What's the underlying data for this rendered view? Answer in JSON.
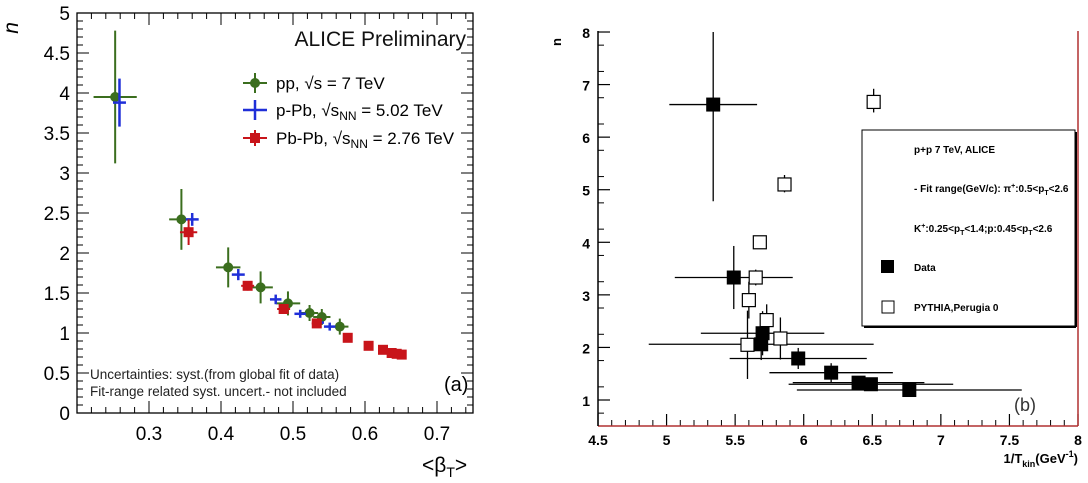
{
  "chart_data": [
    {
      "type": "scatter",
      "panel_label": "(a)",
      "title": "ALICE Preliminary",
      "xlabel": "<β",
      "xlabel_sub": "T",
      "xlabel_end": ">",
      "ylabel": "n",
      "xlim": [
        0.2,
        0.75
      ],
      "ylim": [
        0,
        5
      ],
      "x_ticks": [
        "0.3",
        "0.4",
        "0.5",
        "0.6",
        "0.7"
      ],
      "x_tick_values": [
        0.3,
        0.4,
        0.5,
        0.6,
        0.7
      ],
      "y_ticks": [
        "0",
        "0.5",
        "1",
        "1.5",
        "2",
        "2.5",
        "3",
        "3.5",
        "4",
        "4.5",
        "5"
      ],
      "y_tick_values": [
        0,
        0.5,
        1,
        1.5,
        2,
        2.5,
        3,
        3.5,
        4,
        4.5,
        5
      ],
      "legend_position": "top-right",
      "notes": [
        "Uncertainties: syst.(from global fit of data)",
        "Fit-range related syst. uncert.- not included"
      ],
      "series": [
        {
          "name": "pp, √s = 7 TeV",
          "color": "#3b6e1e",
          "marker": "circle",
          "points": [
            {
              "x": 0.253,
              "y": 3.95,
              "xerr": 0.03,
              "yerr": 0.83
            },
            {
              "x": 0.345,
              "y": 2.42,
              "xerr": 0.017,
              "yerr": 0.38
            },
            {
              "x": 0.41,
              "y": 1.82,
              "xerr": 0.017,
              "yerr": 0.25
            },
            {
              "x": 0.455,
              "y": 1.57,
              "xerr": 0.017,
              "yerr": 0.2
            },
            {
              "x": 0.493,
              "y": 1.37,
              "xerr": 0.017,
              "yerr": 0.15
            },
            {
              "x": 0.523,
              "y": 1.25,
              "xerr": 0.012,
              "yerr": 0.1
            },
            {
              "x": 0.54,
              "y": 1.2,
              "xerr": 0.012,
              "yerr": 0.1
            },
            {
              "x": 0.565,
              "y": 1.08,
              "xerr": 0.012,
              "yerr": 0.1
            }
          ]
        },
        {
          "name": "p-Pb, √s",
          "name_sub": "NN",
          "name_end": " = 5.02 TeV",
          "color": "#1f2fd8",
          "marker": "cross",
          "points": [
            {
              "x": 0.259,
              "y": 3.88,
              "xerr": 0.009,
              "yerr": 0.3
            },
            {
              "x": 0.36,
              "y": 2.42,
              "xerr": 0.009,
              "yerr": 0.08
            },
            {
              "x": 0.424,
              "y": 1.73,
              "xerr": 0.009,
              "yerr": 0.07
            },
            {
              "x": 0.476,
              "y": 1.42,
              "xerr": 0.008,
              "yerr": 0.06
            },
            {
              "x": 0.51,
              "y": 1.24,
              "xerr": 0.008,
              "yerr": 0.05
            },
            {
              "x": 0.535,
              "y": 1.13,
              "xerr": 0.008,
              "yerr": 0.05
            },
            {
              "x": 0.551,
              "y": 1.08,
              "xerr": 0.008,
              "yerr": 0.05
            }
          ]
        },
        {
          "name": "Pb-Pb, √s",
          "name_sub": "NN",
          "name_end": " = 2.76 TeV",
          "color": "#c8141a",
          "marker": "square",
          "points": [
            {
              "x": 0.355,
              "y": 2.26,
              "xerr": 0.012,
              "yerr": 0.16
            },
            {
              "x": 0.437,
              "y": 1.59,
              "xerr": 0.009,
              "yerr": 0.06
            },
            {
              "x": 0.487,
              "y": 1.3,
              "xerr": 0.009,
              "yerr": 0.05
            },
            {
              "x": 0.533,
              "y": 1.12,
              "xerr": 0.007,
              "yerr": 0.04
            },
            {
              "x": 0.576,
              "y": 0.94,
              "xerr": 0.005,
              "yerr": 0.03
            },
            {
              "x": 0.605,
              "y": 0.84,
              "xerr": 0.005,
              "yerr": 0.03
            },
            {
              "x": 0.625,
              "y": 0.79,
              "xerr": 0.005,
              "yerr": 0.03
            },
            {
              "x": 0.637,
              "y": 0.75,
              "xerr": 0.004,
              "yerr": 0.02
            },
            {
              "x": 0.644,
              "y": 0.74,
              "xerr": 0.004,
              "yerr": 0.02
            },
            {
              "x": 0.651,
              "y": 0.73,
              "xerr": 0.004,
              "yerr": 0.02
            }
          ]
        }
      ]
    },
    {
      "type": "scatter",
      "panel_label": "(b)",
      "xlabel": "1/T",
      "xlabel_sub": "kin",
      "xlabel_end": "(GeV",
      "xlabel_sup": "-1",
      "xlabel_close": ")",
      "ylabel": "n",
      "xlim": [
        4.5,
        8
      ],
      "ylim": [
        0.5,
        8
      ],
      "x_ticks": [
        "4.5",
        "5",
        "5.5",
        "6",
        "6.5",
        "7",
        "7.5",
        "8"
      ],
      "x_tick_values": [
        4.5,
        5,
        5.5,
        6,
        6.5,
        7,
        7.5,
        8
      ],
      "y_ticks": [
        "1",
        "2",
        "3",
        "4",
        "5",
        "6",
        "7",
        "8"
      ],
      "y_tick_values": [
        1,
        2,
        3,
        4,
        5,
        6,
        7,
        8
      ],
      "legend_position": "right",
      "legend_title": "p+p 7 TeV, ALICE",
      "legend_text": [
        "- Fit range(GeV/c): π",
        "+",
        ":0.5<p",
        "T",
        "<2.6",
        "K",
        "+",
        ":0.25<p",
        "T",
        "<1.4;p:0.45<p",
        "T",
        "<2.6"
      ],
      "series": [
        {
          "name": "Data",
          "marker": "filled-square",
          "color": "#000000",
          "points": [
            {
              "x": 5.34,
              "y": 6.62,
              "xerr": 0.32,
              "yerr_up": 1.38,
              "yerr_down": 1.84
            },
            {
              "x": 5.49,
              "y": 3.33,
              "xerr": 0.43,
              "yerr_up": 0.6,
              "yerr_down": 0.6
            },
            {
              "x": 5.7,
              "y": 2.27,
              "xerr": 0.45,
              "yerr_up": 0.42,
              "yerr_down": 0.42
            },
            {
              "x": 5.69,
              "y": 2.06,
              "xerr": 0.82,
              "yerr_up": 0.3,
              "yerr_down": 0.3
            },
            {
              "x": 5.96,
              "y": 1.79,
              "xerr": 0.5,
              "yerr_up": 0.2,
              "yerr_down": 0.2
            },
            {
              "x": 6.2,
              "y": 1.52,
              "xerr": 0.45,
              "yerr_up": 0.18,
              "yerr_down": 0.18
            },
            {
              "x": 6.4,
              "y": 1.33,
              "xerr": 0.48,
              "yerr_up": 0.12,
              "yerr_down": 0.12
            },
            {
              "x": 6.49,
              "y": 1.3,
              "xerr": 0.6,
              "yerr_up": 0.12,
              "yerr_down": 0.12
            },
            {
              "x": 6.77,
              "y": 1.19,
              "xerr": 0.82,
              "yerr_up": 0.1,
              "yerr_down": 0.1
            }
          ]
        },
        {
          "name": "PYTHIA,Perugia 0",
          "marker": "open-square",
          "color": "#000000",
          "points": [
            {
              "x": 6.51,
              "y": 6.67,
              "xerr": 0.0,
              "yerr_up": 0.25,
              "yerr_down": 0.2
            },
            {
              "x": 5.86,
              "y": 5.1,
              "xerr": 0.0,
              "yerr_up": 0.18,
              "yerr_down": 0.15
            },
            {
              "x": 5.68,
              "y": 4.0,
              "xerr": 0.0,
              "yerr_up": 0.12,
              "yerr_down": 0.1
            },
            {
              "x": 5.65,
              "y": 3.33,
              "xerr": 0.0,
              "yerr_up": 0.15,
              "yerr_down": 0.15
            },
            {
              "x": 5.6,
              "y": 2.9,
              "xerr": 0.0,
              "yerr_up": 0.35,
              "yerr_down": 0.35
            },
            {
              "x": 5.73,
              "y": 2.52,
              "xerr": 0.0,
              "yerr_up": 0.3,
              "yerr_down": 0.3
            },
            {
              "x": 5.83,
              "y": 2.17,
              "xerr": 0.0,
              "yerr_up": 0.4,
              "yerr_down": 0.4
            },
            {
              "x": 5.59,
              "y": 2.05,
              "xerr": 0.0,
              "yerr_up": 0.65,
              "yerr_down": 0.65
            }
          ]
        }
      ]
    }
  ]
}
